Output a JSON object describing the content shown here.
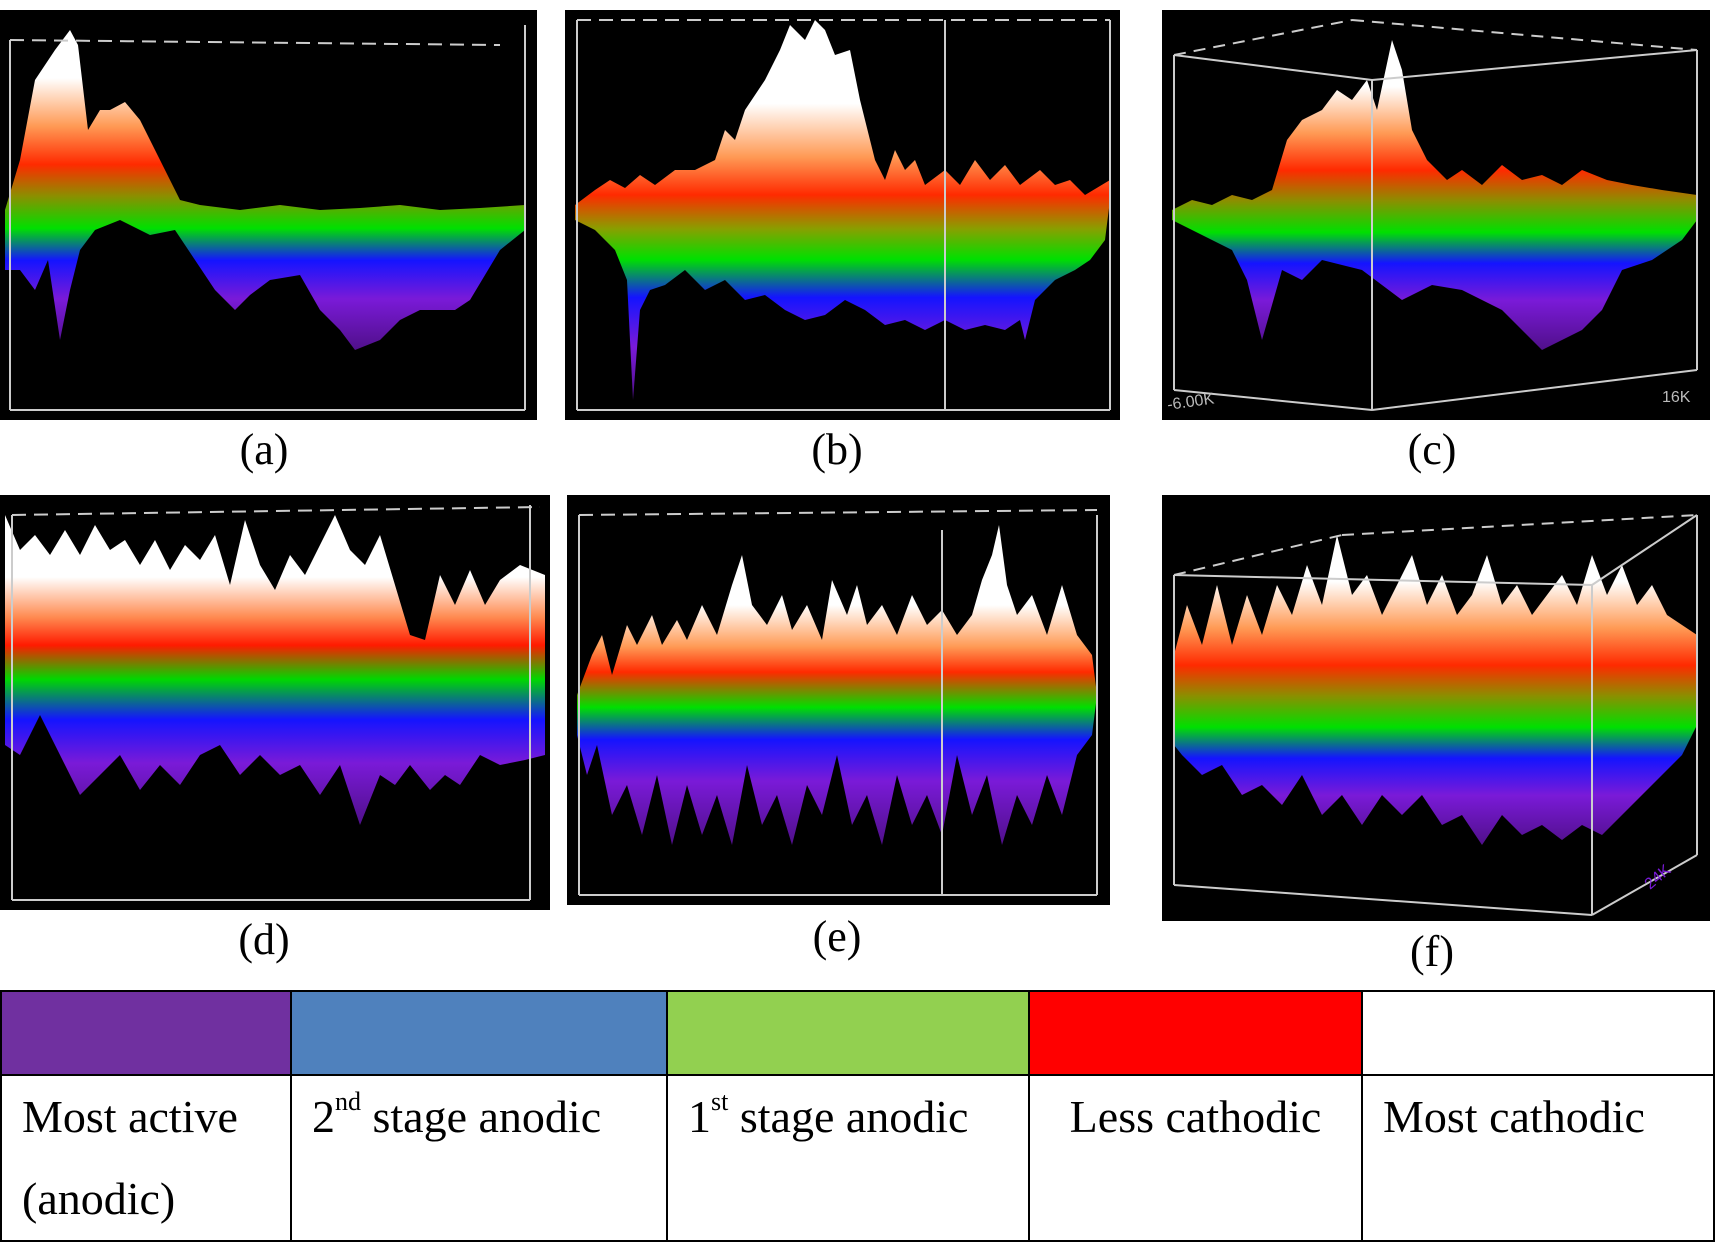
{
  "panels": [
    {
      "id": "a",
      "label": "(a)"
    },
    {
      "id": "b",
      "label": "(b)"
    },
    {
      "id": "c",
      "label": "(c)",
      "axis_left": "-6.00K",
      "axis_right": "16K"
    },
    {
      "id": "d",
      "label": "(d)"
    },
    {
      "id": "e",
      "label": "(e)"
    },
    {
      "id": "f",
      "label": "(f)",
      "axis_right": "24K"
    }
  ],
  "gradient_colors": [
    "#ffffff",
    "#ff9a55",
    "#ff2a00",
    "#ff5500",
    "#00e000",
    "#00c850",
    "#1414ff",
    "#7a1ad8",
    "#000000"
  ],
  "legend": [
    {
      "color": "#7030a0",
      "line1": "Most active",
      "line2": "(anodic)"
    },
    {
      "color": "#4f81bd",
      "num": "2",
      "sup": "nd",
      "text": " stage anodic"
    },
    {
      "color": "#92d050",
      "num": "1",
      "sup": "st",
      "text": " stage anodic"
    },
    {
      "color": "#ff0000",
      "text": "Less cathodic"
    },
    {
      "color": "#ffffff",
      "text": "Most cathodic"
    }
  ]
}
